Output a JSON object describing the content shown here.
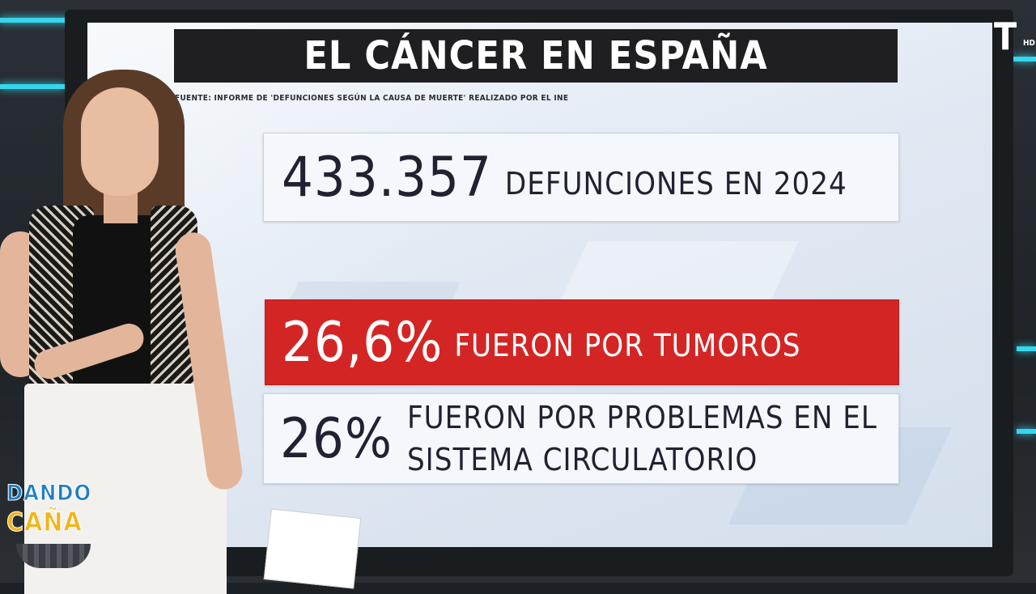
{
  "infographic": {
    "title": "EL CÁNCER EN ESPAÑA",
    "source": "FUENTE: INFORME DE 'DEFUNCIONES SEGÚN LA CAUSA DE MUERTE' REALIZADO POR EL INE",
    "stats": [
      {
        "value": "433.357",
        "text": "DEFUNCIONES EN 2024",
        "highlight": false
      },
      {
        "value": "26,6%",
        "text": "FUERON POR TUMOROS",
        "highlight": true,
        "color": "#d42525"
      },
      {
        "value": "26%",
        "text_line1": "FUERON POR PROBLEMAS EN EL",
        "text_line2": "SISTEMA CIRCULATORIO",
        "highlight": false
      }
    ]
  },
  "show_logo": {
    "line1": "DANDO",
    "line2": "CAÑA"
  },
  "channel_logo": {
    "mark": "T",
    "suffix": "HD"
  },
  "colors": {
    "title_bar": "#1f1f21",
    "highlight": "#d42525",
    "accent_neon": "#36d7ee",
    "logo_blue": "#1e7fc4",
    "logo_yellow": "#f2b418"
  }
}
